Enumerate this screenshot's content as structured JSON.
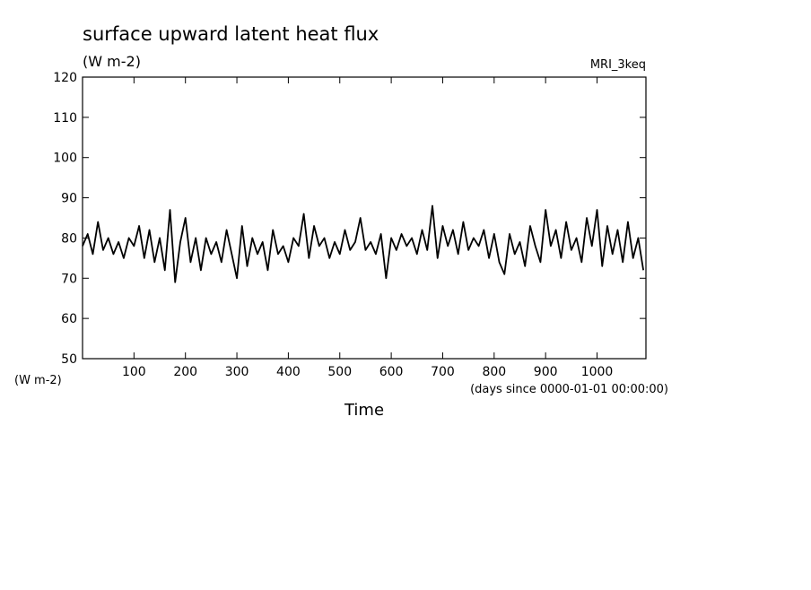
{
  "chart_data": {
    "type": "line",
    "title": "surface upward latent heat flux",
    "subtitle": "(W m-2)",
    "annotation": "MRI_3keq",
    "y_unit_label": "(W m-2)",
    "x_unit_label": "(days since 0000-01-01 00:00:00)",
    "x_label": "Time",
    "xlim": [
      0,
      1095
    ],
    "ylim": [
      50,
      120
    ],
    "xticks": [
      100,
      200,
      300,
      400,
      500,
      600,
      700,
      800,
      900,
      1000
    ],
    "yticks": [
      50,
      60,
      70,
      80,
      90,
      100,
      110,
      120
    ],
    "color": "#000000",
    "x": [
      0,
      10,
      20,
      30,
      40,
      50,
      60,
      70,
      80,
      90,
      100,
      110,
      120,
      130,
      140,
      150,
      160,
      170,
      180,
      190,
      200,
      210,
      220,
      230,
      240,
      250,
      260,
      270,
      280,
      290,
      300,
      310,
      320,
      330,
      340,
      350,
      360,
      370,
      380,
      390,
      400,
      410,
      420,
      430,
      440,
      450,
      460,
      470,
      480,
      490,
      500,
      510,
      520,
      530,
      540,
      550,
      560,
      570,
      580,
      590,
      600,
      610,
      620,
      630,
      640,
      650,
      660,
      670,
      680,
      690,
      700,
      710,
      720,
      730,
      740,
      750,
      760,
      770,
      780,
      790,
      800,
      810,
      820,
      830,
      840,
      850,
      860,
      870,
      880,
      890,
      900,
      910,
      920,
      930,
      940,
      950,
      960,
      970,
      980,
      990,
      1000,
      1010,
      1020,
      1030,
      1040,
      1050,
      1060,
      1070,
      1080,
      1090
    ],
    "values": [
      78,
      81,
      76,
      84,
      77,
      80,
      76,
      79,
      75,
      80,
      78,
      83,
      75,
      82,
      74,
      80,
      72,
      87,
      69,
      79,
      85,
      74,
      80,
      72,
      80,
      76,
      79,
      74,
      82,
      76,
      70,
      83,
      73,
      80,
      76,
      79,
      72,
      82,
      76,
      78,
      74,
      80,
      78,
      86,
      75,
      83,
      78,
      80,
      75,
      79,
      76,
      82,
      77,
      79,
      85,
      77,
      79,
      76,
      81,
      70,
      80,
      77,
      81,
      78,
      80,
      76,
      82,
      77,
      88,
      75,
      83,
      78,
      82,
      76,
      84,
      77,
      80,
      78,
      82,
      75,
      81,
      74,
      71,
      81,
      76,
      79,
      73,
      83,
      78,
      74,
      87,
      78,
      82,
      75,
      84,
      77,
      80,
      74,
      85,
      78,
      87,
      73,
      83,
      76,
      82,
      74,
      84,
      75,
      80,
      72
    ]
  }
}
